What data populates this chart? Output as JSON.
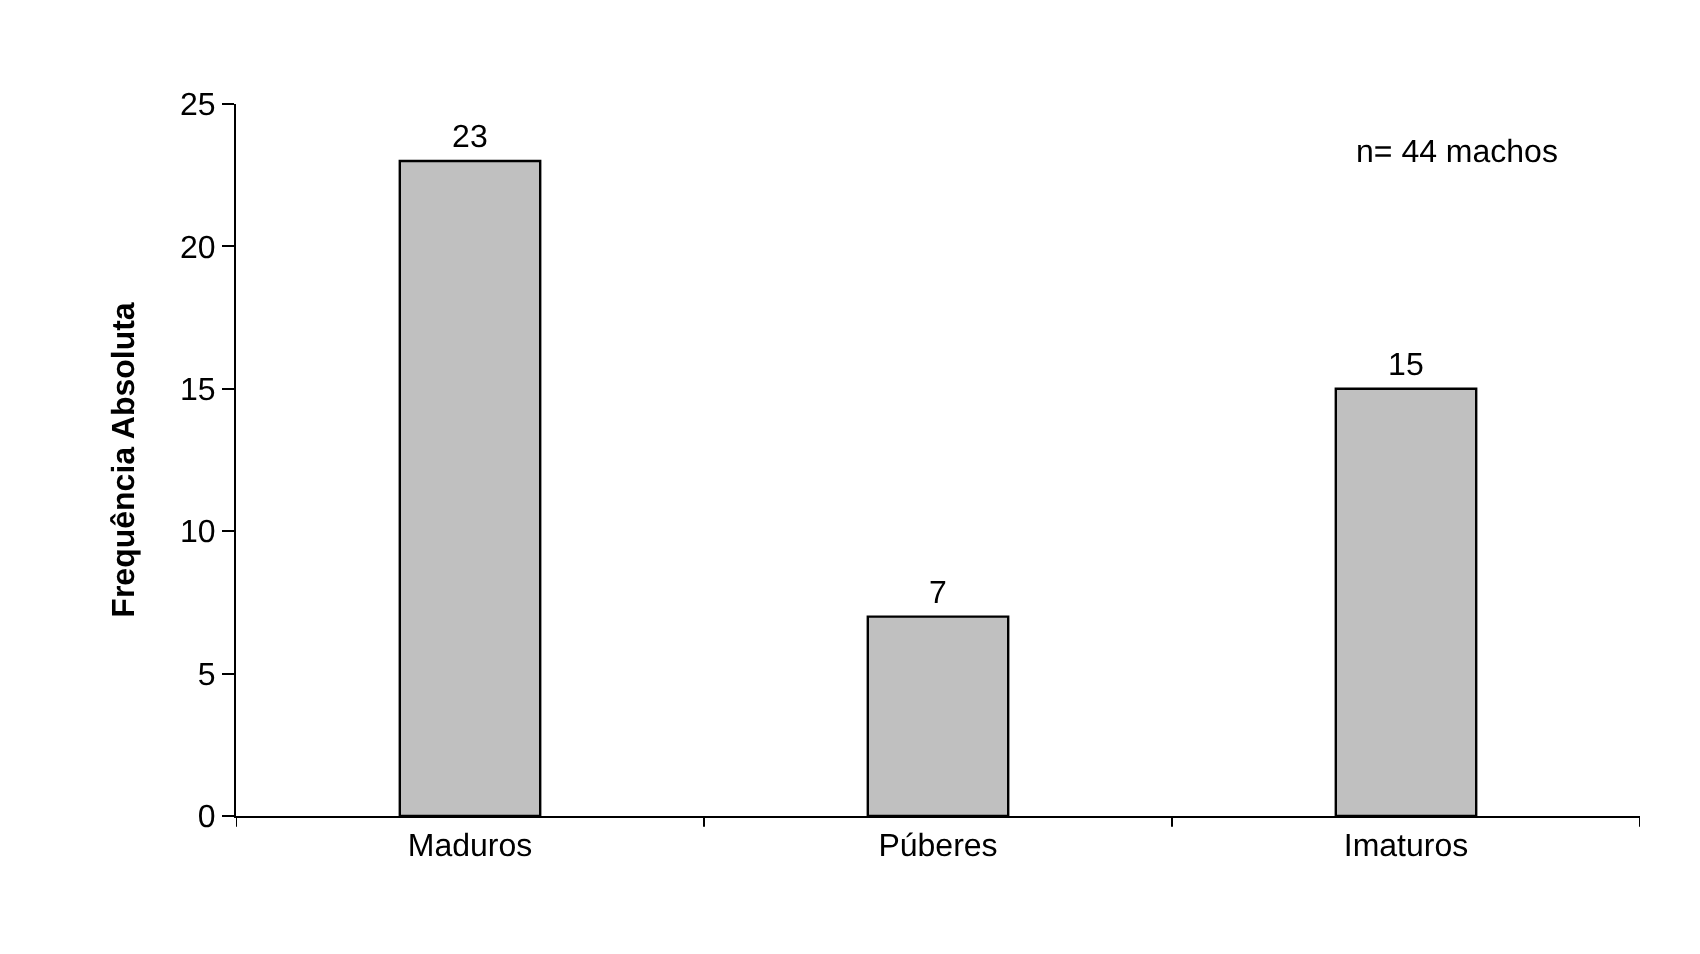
{
  "chart_data": {
    "type": "bar",
    "ylabel": "Frequência Absoluta",
    "categories": [
      "Maduros",
      "Púberes",
      "Imaturos"
    ],
    "values": [
      23,
      7,
      15
    ],
    "color": "#c0c0c0",
    "ylim": [
      0,
      25
    ],
    "yticks": [
      0,
      5,
      10,
      15,
      20,
      25
    ],
    "grid": false,
    "legend": false,
    "data_labels": true,
    "annotations": [
      "n= 44 machos"
    ]
  }
}
